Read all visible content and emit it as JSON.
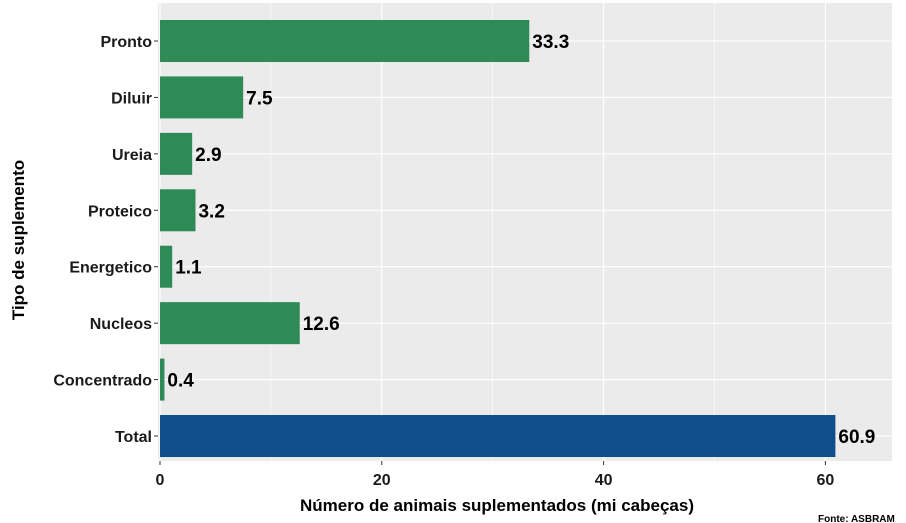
{
  "chart_data": {
    "type": "bar",
    "orientation": "horizontal",
    "categories": [
      "Pronto",
      "Diluir",
      "Ureia",
      "Proteico",
      "Energetico",
      "Nucleos",
      "Concentrado",
      "Total"
    ],
    "values": [
      33.3,
      7.5,
      2.9,
      3.2,
      1.1,
      12.6,
      0.4,
      60.9
    ],
    "value_labels": [
      "33.3",
      "7.5",
      "2.9",
      "3.2",
      "1.1",
      "12.6",
      "0.4",
      "60.9"
    ],
    "bar_colors": [
      "#2e8b57",
      "#2e8b57",
      "#2e8b57",
      "#2e8b57",
      "#2e8b57",
      "#2e8b57",
      "#2e8b57",
      "#104e8b"
    ],
    "xlabel": "Número de animais suplementados (mi cabeças)",
    "ylabel": "Tipo de suplemento",
    "xlim": [
      0,
      66
    ],
    "xticks": [
      0,
      20,
      40,
      60
    ],
    "grid": true,
    "panel_background": "#ebebeb",
    "grid_color": "#ffffff",
    "source": "Fonte: ASBRAM"
  }
}
